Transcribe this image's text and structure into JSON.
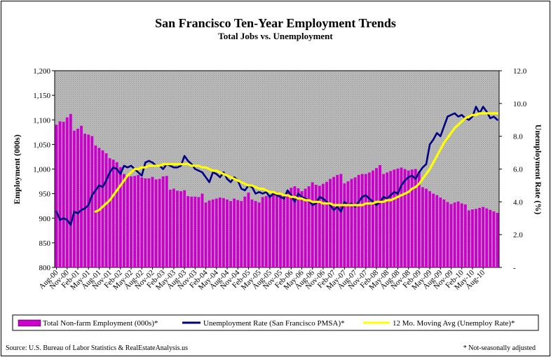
{
  "chart_data": {
    "type": "bar",
    "title": "San Francisco Ten-Year Employment Trends",
    "subtitle": "Total Jobs vs. Unemployment",
    "ylabel": "Employment (000s)",
    "y2label": "Unemployment Rate (%)",
    "ylim": [
      800,
      1200
    ],
    "y_ticks": [
      "800",
      "850",
      "900",
      "950",
      "1,000",
      "1,050",
      "1,100",
      "1,150",
      "1,200"
    ],
    "y2lim": [
      0,
      12
    ],
    "y2_ticks": [
      "-",
      "2.0",
      "4.0",
      "6.0",
      "8.0",
      "10.0",
      "12.0"
    ],
    "grid": false,
    "legend_position": "bottom",
    "x_tick_labels": [
      "Aug-00",
      "Nov-00",
      "Feb-01",
      "May-01",
      "Aug-01",
      "Nov-01",
      "Feb-02",
      "May-02",
      "Aug-02",
      "Nov-02",
      "Feb-03",
      "May-03",
      "Aug-03",
      "Nov-03",
      "Feb-04",
      "May-04",
      "Aug-04",
      "Nov-04",
      "Feb-05",
      "May-05",
      "Aug-05",
      "Nov-05",
      "Feb-06",
      "May-06",
      "Aug-06",
      "Nov-06",
      "Feb-07",
      "May-07",
      "Aug-07",
      "Nov-07",
      "Feb-08",
      "May-08",
      "Aug-08",
      "Nov-08",
      "Feb-09",
      "May-09",
      "Aug-09",
      "Nov-09",
      "Feb-10",
      "May-10",
      "Aug-10"
    ],
    "series": [
      {
        "name": "Total Non-farm Employment (000s)*",
        "axis": "left",
        "kind": "bar",
        "color": "#cc00cc",
        "values": [
          1090,
          1097,
          1096,
          1105,
          1112,
          1078,
          1082,
          1088,
          1072,
          1070,
          1067,
          1048,
          1043,
          1038,
          1032,
          1022,
          1019,
          1014,
          1004,
          990,
          986,
          985,
          986,
          988,
          983,
          981,
          981,
          984,
          979,
          980,
          985,
          986,
          958,
          960,
          956,
          955,
          957,
          945,
          944,
          944,
          943,
          950,
          932,
          936,
          938,
          940,
          942,
          941,
          938,
          935,
          940,
          937,
          935,
          944,
          952,
          938,
          935,
          932,
          943,
          945,
          948,
          950,
          953,
          952,
          949,
          953,
          962,
          965,
          961,
          955,
          960,
          965,
          973,
          968,
          966,
          970,
          974,
          980,
          984,
          988,
          990,
          971,
          975,
          980,
          983,
          988,
          990,
          990,
          993,
          997,
          1002,
          1008,
          990,
          993,
          996,
          999,
          1001,
          1003,
          1000,
          997,
          999,
          1000,
          995,
          963,
          960,
          955,
          950,
          947,
          942,
          938,
          933,
          929,
          932,
          934,
          930,
          928,
          916,
          918,
          919,
          921,
          923,
          920,
          917,
          914,
          911
        ]
      },
      {
        "name": "Unemployment Rate (San Francisco PMSA)*",
        "axis": "right",
        "kind": "line",
        "color": "#000080",
        "values": [
          3.4,
          2.9,
          3.0,
          2.9,
          2.6,
          3.4,
          3.3,
          3.5,
          3.6,
          3.8,
          4.4,
          4.7,
          5.0,
          4.9,
          5.3,
          5.8,
          6.1,
          6.0,
          5.7,
          6.2,
          6.1,
          6.2,
          6.0,
          5.8,
          5.6,
          6.4,
          6.5,
          6.4,
          6.2,
          6.2,
          6.0,
          6.3,
          6.2,
          6.1,
          6.1,
          6.2,
          6.8,
          6.5,
          6.3,
          6.0,
          5.9,
          5.8,
          5.5,
          5.2,
          5.8,
          5.7,
          5.5,
          5.8,
          5.4,
          5.2,
          5.5,
          5.3,
          4.8,
          4.7,
          5.0,
          4.9,
          4.5,
          4.6,
          4.5,
          4.6,
          4.3,
          4.5,
          4.4,
          4.3,
          4.2,
          4.7,
          4.4,
          4.0,
          4.5,
          4.3,
          4.2,
          4.1,
          3.8,
          3.9,
          4.3,
          4.2,
          4.0,
          3.8,
          3.5,
          3.7,
          3.4,
          4.0,
          3.8,
          3.9,
          3.7,
          4.0,
          4.3,
          4.4,
          4.2,
          4.0,
          3.8,
          4.0,
          4.3,
          4.2,
          4.4,
          4.6,
          4.5,
          5.0,
          5.3,
          5.5,
          5.6,
          5.4,
          5.8,
          6.1,
          6.3,
          7.5,
          7.8,
          8.2,
          8.0,
          8.6,
          9.2,
          9.3,
          9.4,
          9.2,
          9.3,
          9.1,
          9.0,
          9.2,
          9.8,
          9.4,
          9.8,
          9.5,
          9.1,
          9.2,
          9.0
        ]
      },
      {
        "name": "12 Mo. Moving Avg (Unemploy Rate)*",
        "axis": "right",
        "kind": "line",
        "color": "#ffff00",
        "values": [
          null,
          null,
          null,
          null,
          null,
          null,
          null,
          null,
          null,
          null,
          null,
          3.4,
          3.5,
          3.7,
          3.9,
          4.1,
          4.4,
          4.7,
          5.0,
          5.3,
          5.6,
          5.8,
          6.0,
          6.0,
          6.1,
          6.1,
          6.2,
          6.2,
          6.2,
          6.2,
          6.3,
          6.3,
          6.3,
          6.3,
          6.3,
          6.3,
          6.3,
          6.3,
          6.2,
          6.2,
          6.2,
          6.1,
          6.1,
          6.0,
          5.9,
          5.9,
          5.8,
          5.7,
          5.6,
          5.5,
          5.4,
          5.3,
          5.2,
          5.1,
          5.0,
          5.0,
          4.9,
          4.8,
          4.8,
          4.7,
          4.6,
          4.6,
          4.5,
          4.5,
          4.4,
          4.4,
          4.3,
          4.3,
          4.2,
          4.2,
          4.1,
          4.1,
          4.0,
          4.0,
          4.0,
          3.9,
          3.9,
          3.9,
          3.8,
          3.8,
          3.8,
          3.8,
          3.8,
          3.8,
          3.8,
          3.8,
          3.8,
          3.9,
          3.9,
          3.9,
          4.0,
          4.0,
          4.0,
          4.1,
          4.1,
          4.2,
          4.3,
          4.4,
          4.5,
          4.6,
          4.8,
          4.9,
          5.1,
          5.4,
          5.7,
          6.0,
          6.4,
          6.8,
          7.2,
          7.6,
          7.9,
          8.2,
          8.5,
          8.7,
          8.9,
          9.1,
          9.2,
          9.3,
          9.3,
          9.4,
          9.4,
          9.4,
          9.4,
          9.4,
          9.4
        ]
      }
    ]
  },
  "source_note": "Source: U.S. Bureau of Labor Statistics & RealEstateAnalysis.us",
  "adjustment_note": "* Not-seasonally adjusted"
}
